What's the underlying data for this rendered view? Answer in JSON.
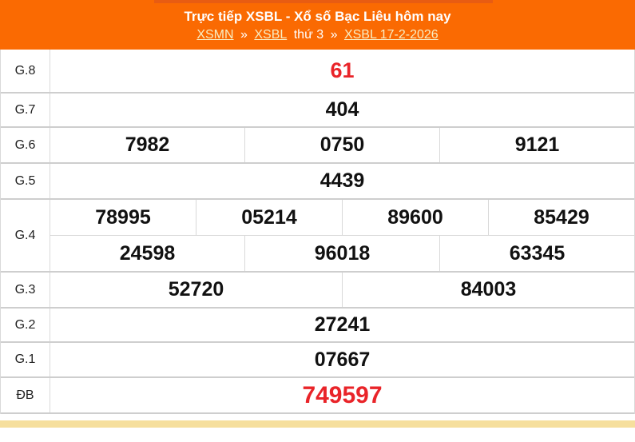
{
  "header": {
    "title": "Trực tiếp XSBL - Xổ số Bạc Liêu hôm nay",
    "breadcrumb": {
      "region": "XSMN",
      "province": "XSBL",
      "weekday": "thứ 3",
      "separator": "»",
      "date_link": "XSBL 17-2-2026"
    }
  },
  "colors": {
    "header_orange": "#fa6a02",
    "header_accent_strip": "#e85c12",
    "link_cream": "#f8edc3",
    "highlight_red": "#e92429",
    "border_gray": "#d9d9d9",
    "bottom_strip_yellow": "#f6df9d"
  },
  "table": {
    "rows": [
      {
        "label": "G.8",
        "cells": [
          "61"
        ],
        "highlight": "red"
      },
      {
        "label": "G.7",
        "cells": [
          "404"
        ]
      },
      {
        "label": "G.6",
        "cells": [
          "7982",
          "0750",
          "9121"
        ]
      },
      {
        "label": "G.5",
        "cells": [
          "4439"
        ]
      },
      {
        "label": "G.4",
        "cells_top": [
          "78995",
          "05214",
          "89600",
          "85429"
        ],
        "cells_bottom": [
          "24598",
          "96018",
          "63345"
        ]
      },
      {
        "label": "G.3",
        "cells": [
          "52720",
          "84003"
        ]
      },
      {
        "label": "G.2",
        "cells": [
          "27241"
        ]
      },
      {
        "label": "G.1",
        "cells": [
          "07667"
        ]
      },
      {
        "label": "ĐB",
        "cells": [
          "749597"
        ],
        "highlight": "red"
      }
    ]
  }
}
